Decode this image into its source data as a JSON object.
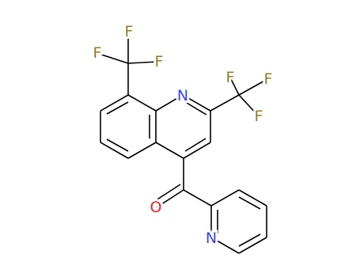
{
  "atoms": {
    "f1": "F",
    "f2": "F",
    "f3": "F",
    "f4": "F",
    "f5": "F",
    "f6": "F",
    "n_quinoline": "N",
    "o_carbonyl": "O",
    "n_pyridine": "N"
  }
}
